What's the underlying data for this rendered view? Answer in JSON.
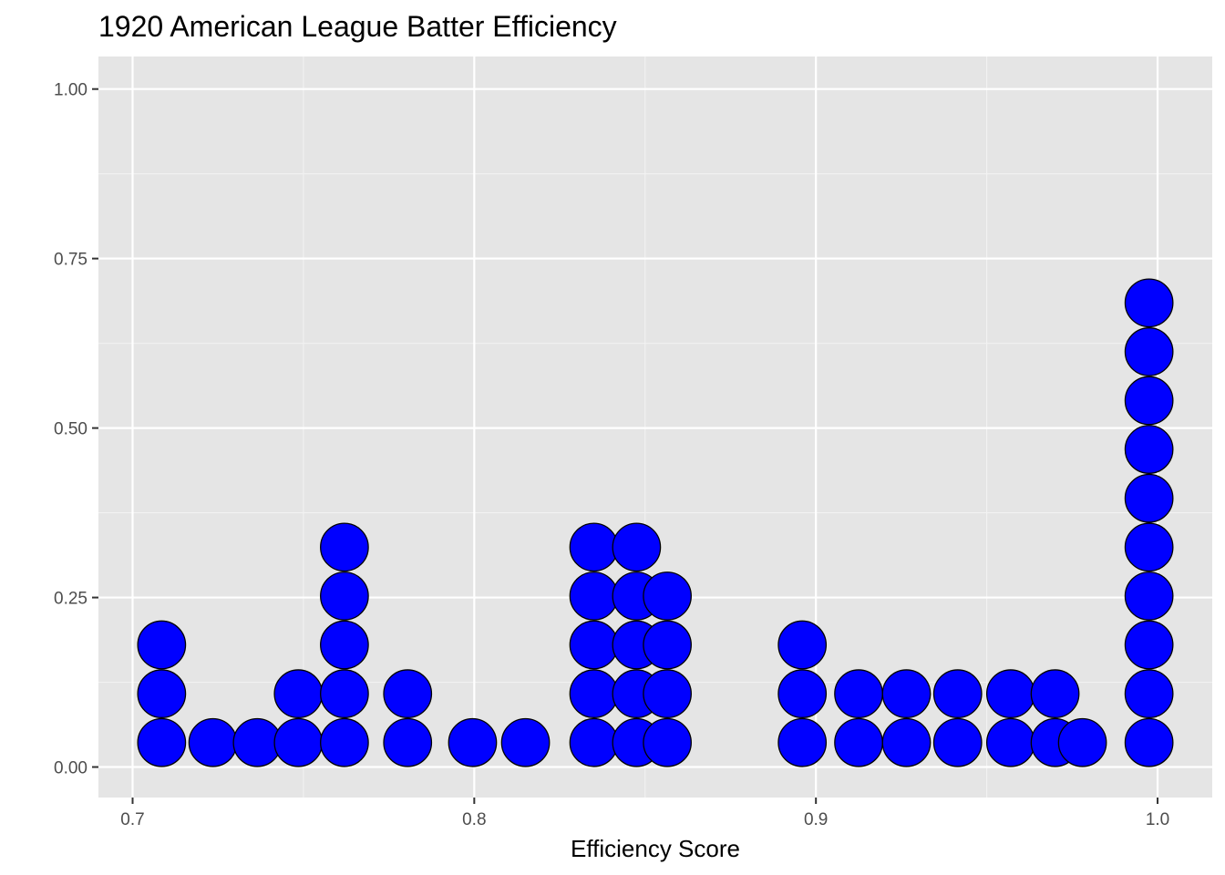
{
  "chart_data": {
    "type": "scatter",
    "subtype": "dotplot",
    "title": "1920 American League Batter Efficiency",
    "xlabel": "Efficiency Score",
    "ylabel": "",
    "xlim": [
      0.69,
      1.016
    ],
    "ylim": [
      -0.045,
      1.048
    ],
    "x_ticks": [
      0.7,
      0.8,
      0.9,
      1.0
    ],
    "x_tick_labels": [
      "0.7",
      "0.8",
      "0.9",
      "1.0"
    ],
    "y_ticks": [
      0.0,
      0.25,
      0.5,
      0.75,
      1.0
    ],
    "y_tick_labels": [
      "0.00",
      "0.25",
      "0.50",
      "0.75",
      "1.00"
    ],
    "grid": true,
    "background": "#e5e5e5",
    "dot_fill": "#0000ff",
    "dot_stroke": "#000000",
    "bin_width": 0.0143,
    "stacks": [
      {
        "x": 0.7085,
        "count": 3
      },
      {
        "x": 0.7235,
        "count": 1
      },
      {
        "x": 0.7365,
        "count": 1
      },
      {
        "x": 0.7485,
        "count": 2
      },
      {
        "x": 0.762,
        "count": 5
      },
      {
        "x": 0.7805,
        "count": 2
      },
      {
        "x": 0.7995,
        "count": 1
      },
      {
        "x": 0.815,
        "count": 1
      },
      {
        "x": 0.835,
        "count": 5
      },
      {
        "x": 0.8475,
        "count": 5
      },
      {
        "x": 0.8565,
        "count": 4
      },
      {
        "x": 0.896,
        "count": 3
      },
      {
        "x": 0.9125,
        "count": 2
      },
      {
        "x": 0.9265,
        "count": 2
      },
      {
        "x": 0.9415,
        "count": 2
      },
      {
        "x": 0.957,
        "count": 2
      },
      {
        "x": 0.97,
        "count": 2
      },
      {
        "x": 0.978,
        "count": 1
      },
      {
        "x": 0.9975,
        "count": 10
      }
    ]
  }
}
